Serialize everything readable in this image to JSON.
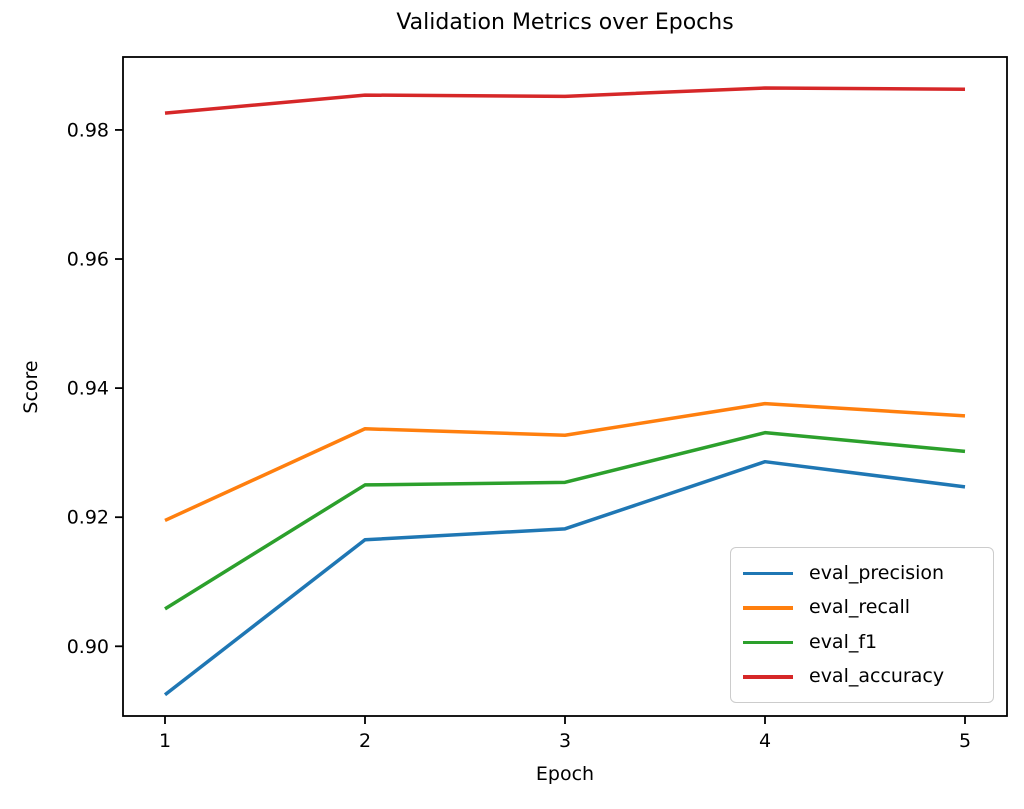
{
  "figure": {
    "title": "Validation Metrics over Epochs",
    "xlabel": "Epoch",
    "ylabel": "Score"
  },
  "chart_data": {
    "type": "line",
    "title": "Validation Metrics over Epochs",
    "xlabel": "Epoch",
    "ylabel": "Score",
    "x": [
      1,
      2,
      3,
      4,
      5
    ],
    "xtick_labels": [
      "1",
      "2",
      "3",
      "4",
      "5"
    ],
    "yticks": [
      0.9,
      0.92,
      0.94,
      0.96,
      0.98
    ],
    "ytick_labels": [
      "0.90",
      "0.92",
      "0.94",
      "0.96",
      "0.98"
    ],
    "xlim": [
      0.79,
      5.21
    ],
    "ylim": [
      0.8892,
      0.9913
    ],
    "grid": false,
    "legend_position": "lower right",
    "axis_color": "#000000",
    "series": [
      {
        "name": "eval_precision",
        "color": "#1f77b4",
        "values": [
          0.8925,
          0.9165,
          0.9182,
          0.9286,
          0.9247
        ]
      },
      {
        "name": "eval_recall",
        "color": "#ff7f0e",
        "values": [
          0.9195,
          0.9337,
          0.9327,
          0.9376,
          0.9357
        ]
      },
      {
        "name": "eval_f1",
        "color": "#2ca02c",
        "values": [
          0.9058,
          0.925,
          0.9254,
          0.9331,
          0.9302
        ]
      },
      {
        "name": "eval_accuracy",
        "color": "#d62728",
        "values": [
          0.9826,
          0.9854,
          0.9852,
          0.9865,
          0.9863
        ]
      }
    ]
  }
}
